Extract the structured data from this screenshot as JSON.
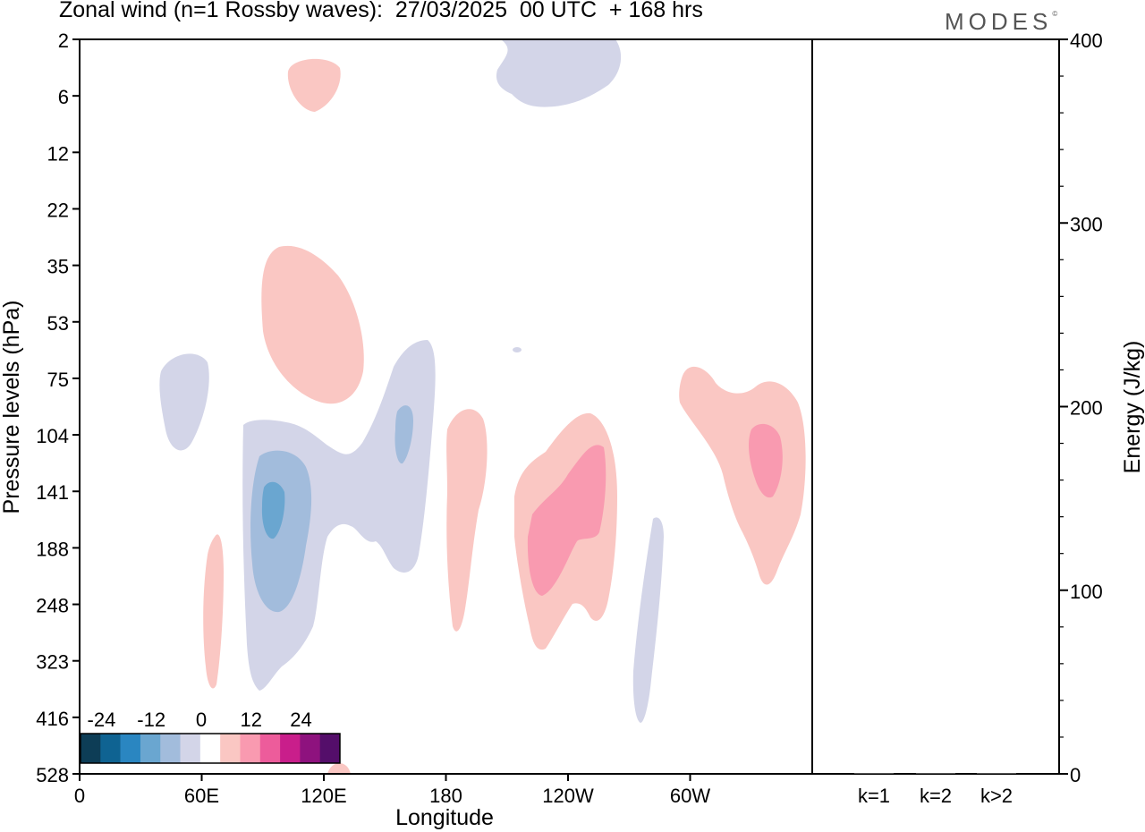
{
  "title": "Zonal wind (n=1 Rossby waves):  27/03/2025  00 UTC  + 168 hrs",
  "logo": "MODES",
  "logo_mark": "©",
  "chart_data": {
    "type": "heatmap",
    "title": "Zonal wind (n=1 Rossby waves):  27/03/2025  00 UTC  + 168 hrs",
    "xlabel": "Longitude",
    "ylabel": "Pressure levels (hPa)",
    "x_ticks": [
      "0",
      "60E",
      "120E",
      "180",
      "120W",
      "60W"
    ],
    "x_range_deg_east": [
      0,
      360
    ],
    "y_ticks": [
      "2",
      "6",
      "12",
      "22",
      "35",
      "53",
      "75",
      "104",
      "141",
      "188",
      "248",
      "323",
      "416",
      "528"
    ],
    "colorbar": {
      "tick_labels": [
        "-24",
        "-12",
        "0",
        "12",
        "24"
      ],
      "levels": [
        -30,
        -25,
        -20,
        -15,
        -10,
        -5,
        0,
        5,
        10,
        15,
        20,
        25,
        30
      ],
      "colors": [
        "#0d3d56",
        "#0f6392",
        "#2a86c1",
        "#6aa6d0",
        "#a2bcdc",
        "#d3d5e8",
        "#ffffff",
        "#fac7c3",
        "#f99ab0",
        "#ed5c9b",
        "#c91e8b",
        "#8e127e",
        "#540e6a"
      ]
    },
    "anomalies": [
      {
        "sign": "positive",
        "level_max": 5,
        "center_lon": 117,
        "center_level_hPa": 5
      },
      {
        "sign": "negative",
        "level_min": -5,
        "center_lon": 228,
        "center_level_hPa": 5
      },
      {
        "sign": "positive",
        "level_max": 5,
        "center_lon": 117,
        "center_level_hPa": 50
      },
      {
        "sign": "negative",
        "level_min": -5,
        "center_lon": 43,
        "center_level_hPa": 90
      },
      {
        "sign": "negative",
        "level_min": -15,
        "center_lon": 95,
        "center_level_hPa": 150
      },
      {
        "sign": "negative",
        "level_min": -10,
        "center_lon": 160,
        "center_level_hPa": 104
      },
      {
        "sign": "positive",
        "level_max": 5,
        "center_lon": 185,
        "center_level_hPa": 170
      },
      {
        "sign": "positive",
        "level_max": 10,
        "center_lon": 235,
        "center_level_hPa": 160
      },
      {
        "sign": "negative",
        "level_min": -5,
        "center_lon": 283,
        "center_level_hPa": 290
      },
      {
        "sign": "positive",
        "level_max": 10,
        "center_lon": 324,
        "center_level_hPa": 120
      },
      {
        "sign": "positive",
        "level_max": 5,
        "center_lon": 65,
        "center_level_hPa": 250
      }
    ],
    "energy_panel": {
      "ylabel": "Energy (J/kg)",
      "y_ticks": [
        "0",
        "100",
        "200",
        "300",
        "400"
      ],
      "ylim": [
        0,
        400
      ],
      "categories": [
        "k=1",
        "k=2",
        "k>2"
      ],
      "values": [
        0,
        0,
        0
      ]
    }
  }
}
